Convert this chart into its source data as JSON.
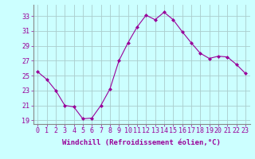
{
  "x": [
    0,
    1,
    2,
    3,
    4,
    5,
    6,
    7,
    8,
    9,
    10,
    11,
    12,
    13,
    14,
    15,
    16,
    17,
    18,
    19,
    20,
    21,
    22,
    23
  ],
  "y": [
    25.5,
    24.5,
    23.0,
    21.0,
    20.8,
    19.2,
    19.3,
    21.0,
    23.2,
    27.0,
    29.4,
    31.5,
    33.1,
    32.5,
    33.5,
    32.5,
    30.9,
    29.4,
    28.0,
    27.3,
    27.6,
    27.5,
    26.5,
    25.3
  ],
  "line_color": "#990099",
  "marker": "D",
  "marker_size": 2,
  "bg_color": "#ccffff",
  "grid_color": "#aacccc",
  "ylabel_ticks": [
    19,
    21,
    23,
    25,
    27,
    29,
    31,
    33
  ],
  "xlabel": "Windchill (Refroidissement éolien,°C)",
  "ylim": [
    18.5,
    34.5
  ],
  "xlim": [
    -0.5,
    23.5
  ],
  "label_fontsize": 6.5,
  "tick_fontsize": 6.0
}
